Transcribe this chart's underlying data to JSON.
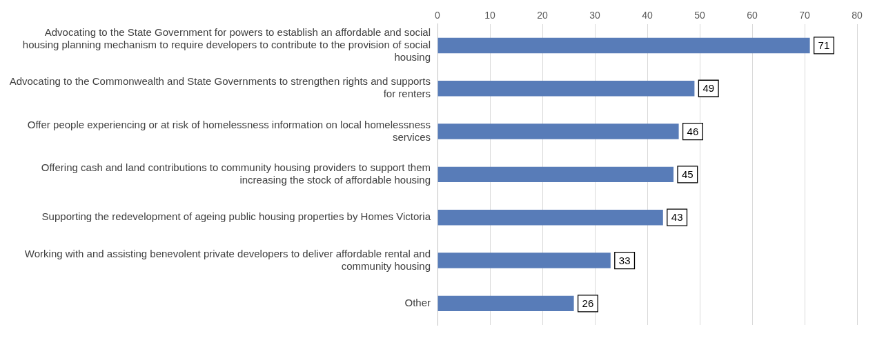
{
  "chart_data": {
    "type": "bar",
    "orientation": "horizontal",
    "categories": [
      "Advocating to the State Government for powers to establish an affordable and social housing planning mechanism to require developers to contribute to the provision of social housing",
      "Advocating to the Commonwealth and State Governments to strengthen rights and supports for renters",
      "Offer people experiencing or at risk of homelessness information on local homelessness services",
      "Offering cash and land contributions to community housing providers to support them increasing the stock of affordable housing",
      "Supporting the redevelopment of ageing public housing properties by Homes Victoria",
      "Working with and assisting benevolent private developers to deliver affordable rental and community housing",
      "Other"
    ],
    "values": [
      71,
      49,
      46,
      45,
      43,
      33,
      26
    ],
    "color": "#587cb8",
    "xlim": [
      0,
      80
    ],
    "xticks": [
      0,
      10,
      20,
      30,
      40,
      50,
      60,
      70,
      80
    ],
    "grid": "x",
    "data_labels": true,
    "legend": false
  }
}
